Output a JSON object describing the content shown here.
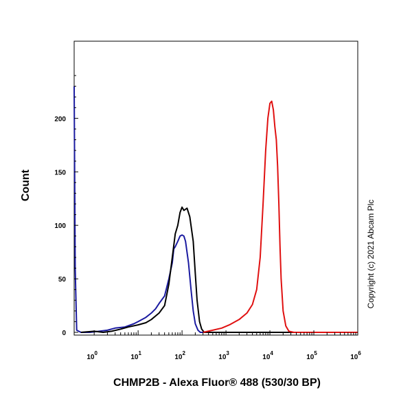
{
  "chart_data": {
    "type": "line",
    "title": "",
    "xlabel": "CHMP2B - Alexa Fluor® 488 (530/30 BP)",
    "ylabel": "Count",
    "x_scale": "log",
    "xlim": [
      0.35,
      1000000
    ],
    "ylim": [
      0,
      240
    ],
    "x_ticks": [
      {
        "base": "10",
        "exp": "0",
        "value": 1
      },
      {
        "base": "10",
        "exp": "1",
        "value": 10
      },
      {
        "base": "10",
        "exp": "2",
        "value": 100
      },
      {
        "base": "10",
        "exp": "3",
        "value": 1000
      },
      {
        "base": "10",
        "exp": "4",
        "value": 10000
      },
      {
        "base": "10",
        "exp": "5",
        "value": 100000
      },
      {
        "base": "10",
        "exp": "6",
        "value": 1000000
      }
    ],
    "y_ticks": [
      {
        "label": "0",
        "value": 0
      },
      {
        "label": "50",
        "value": 50
      },
      {
        "label": "100",
        "value": 100
      },
      {
        "label": "150",
        "value": 150
      },
      {
        "label": "200",
        "value": 200
      }
    ],
    "grid": false,
    "legend": "none",
    "annotation": "Copyright (c) 2021 Abcam Plc",
    "series": [
      {
        "color": "#1a1aa0",
        "points": [
          [
            0.35,
            230
          ],
          [
            0.37,
            60
          ],
          [
            0.4,
            2
          ],
          [
            0.5,
            0
          ],
          [
            0.8,
            0
          ],
          [
            1.3,
            1
          ],
          [
            2,
            2
          ],
          [
            3,
            4
          ],
          [
            5,
            5
          ],
          [
            8,
            8
          ],
          [
            10,
            10
          ],
          [
            15,
            14
          ],
          [
            20,
            18
          ],
          [
            25,
            22
          ],
          [
            30,
            27
          ],
          [
            40,
            34
          ],
          [
            50,
            50
          ],
          [
            60,
            65
          ],
          [
            65,
            78
          ],
          [
            70,
            80
          ],
          [
            80,
            85
          ],
          [
            90,
            90
          ],
          [
            100,
            91
          ],
          [
            110,
            90
          ],
          [
            120,
            85
          ],
          [
            140,
            65
          ],
          [
            160,
            40
          ],
          [
            180,
            20
          ],
          [
            200,
            8
          ],
          [
            230,
            2
          ],
          [
            260,
            0
          ],
          [
            1000000,
            0
          ]
        ]
      },
      {
        "color": "#000000",
        "points": [
          [
            0.5,
            0
          ],
          [
            1,
            1
          ],
          [
            1.6,
            0
          ],
          [
            2.5,
            1
          ],
          [
            4,
            3
          ],
          [
            6,
            5
          ],
          [
            10,
            7
          ],
          [
            15,
            9
          ],
          [
            20,
            12
          ],
          [
            30,
            18
          ],
          [
            40,
            25
          ],
          [
            50,
            45
          ],
          [
            60,
            70
          ],
          [
            70,
            92
          ],
          [
            80,
            100
          ],
          [
            90,
            112
          ],
          [
            100,
            117
          ],
          [
            110,
            114
          ],
          [
            130,
            116
          ],
          [
            150,
            108
          ],
          [
            180,
            85
          ],
          [
            200,
            55
          ],
          [
            220,
            30
          ],
          [
            250,
            10
          ],
          [
            280,
            3
          ],
          [
            320,
            0
          ],
          [
            1000000,
            0
          ]
        ]
      },
      {
        "color": "#e01010",
        "points": [
          [
            300,
            0
          ],
          [
            500,
            2
          ],
          [
            800,
            4
          ],
          [
            1200,
            7
          ],
          [
            2000,
            12
          ],
          [
            3000,
            18
          ],
          [
            4000,
            26
          ],
          [
            5000,
            40
          ],
          [
            6000,
            70
          ],
          [
            7000,
            120
          ],
          [
            8000,
            170
          ],
          [
            9000,
            200
          ],
          [
            10000,
            214
          ],
          [
            11000,
            216
          ],
          [
            12000,
            208
          ],
          [
            13000,
            192
          ],
          [
            14000,
            180
          ],
          [
            15000,
            155
          ],
          [
            16000,
            120
          ],
          [
            17000,
            80
          ],
          [
            18000,
            50
          ],
          [
            20000,
            20
          ],
          [
            23000,
            6
          ],
          [
            27000,
            1
          ],
          [
            35000,
            0
          ],
          [
            1000000,
            0
          ]
        ]
      }
    ]
  }
}
